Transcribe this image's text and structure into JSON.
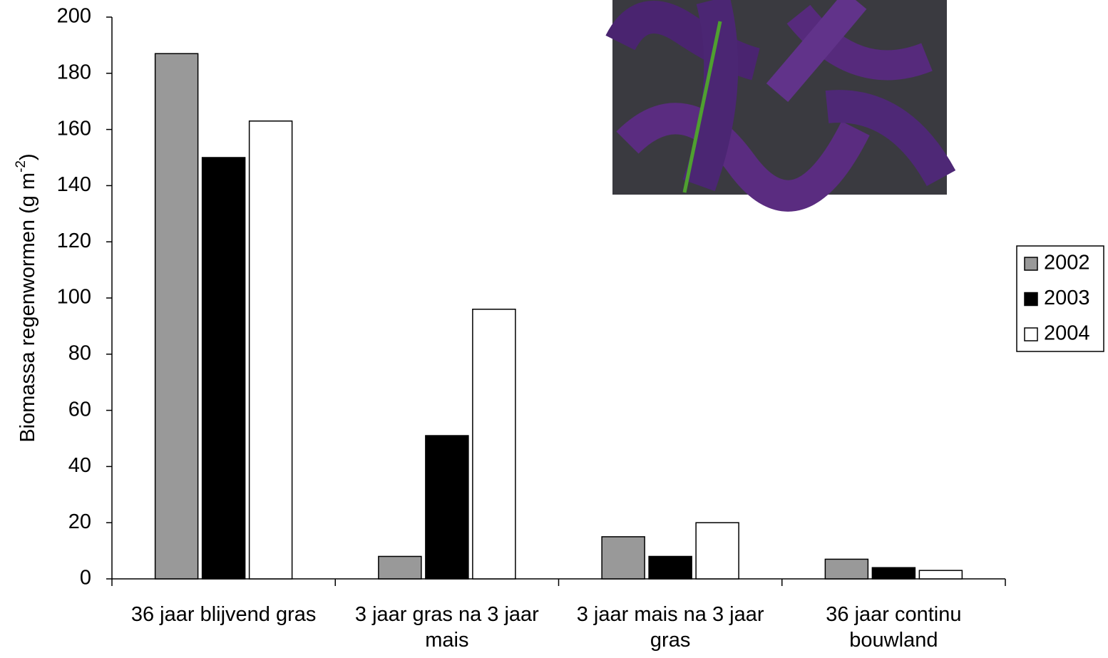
{
  "chart_data": {
    "type": "bar",
    "ylabel": {
      "text": "Biomassa regenwormen (g m",
      "superscript": "-2",
      "suffix": ")"
    },
    "categories": [
      "36 jaar blijvend gras",
      "3 jaar gras na 3 jaar mais",
      "3 jaar mais na 3 jaar gras",
      "36 jaar continu bouwland"
    ],
    "series": [
      {
        "name": "2002",
        "color": "#999999",
        "values": [
          187,
          8,
          15,
          7
        ]
      },
      {
        "name": "2003",
        "color": "#000000",
        "values": [
          150,
          51,
          8,
          4
        ]
      },
      {
        "name": "2004",
        "color": "#ffffff",
        "values": [
          163,
          96,
          20,
          3
        ]
      }
    ],
    "ylim": [
      0,
      200
    ],
    "yticks": [
      0,
      20,
      40,
      60,
      80,
      100,
      120,
      140,
      160,
      180,
      200
    ],
    "grid": false,
    "legend": "right"
  }
}
